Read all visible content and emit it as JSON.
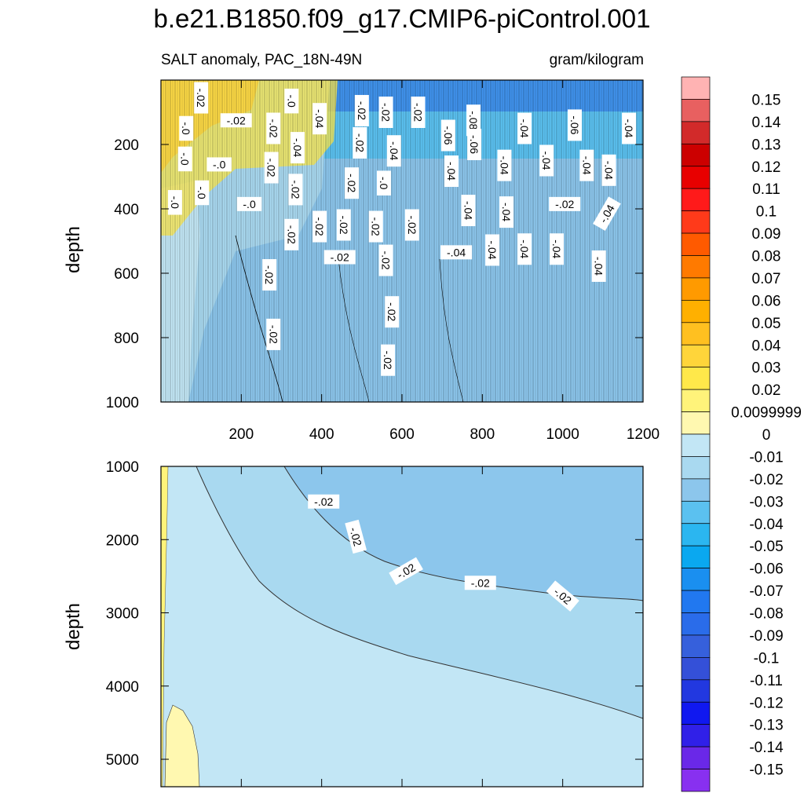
{
  "title": "b.e21.B1850.f09_g17.CMIP6-piControl.001",
  "chart_data": {
    "type": "heatmap",
    "variable": "SALT anomaly, PAC_18N-49N",
    "units": "gram/kilogram",
    "colorbar": {
      "labels": [
        "0.15",
        "0.14",
        "0.13",
        "0.12",
        "0.11",
        "0.1",
        "0.09",
        "0.08",
        "0.07",
        "0.06",
        "0.05",
        "0.04",
        "0.03",
        "0.02",
        "0.0099999",
        "0",
        "-0.01",
        "-0.02",
        "-0.03",
        "-0.04",
        "-0.05",
        "-0.06",
        "-0.07",
        "-0.08",
        "-0.09",
        "-0.1",
        "-0.11",
        "-0.12",
        "-0.13",
        "-0.14",
        "-0.15"
      ],
      "colors": [
        "#FFB3B3",
        "#E86060",
        "#D22A2A",
        "#CC0000",
        "#E80000",
        "#FF1A1A",
        "#FF3A1A",
        "#FF5A00",
        "#FF7A00",
        "#FF9A00",
        "#FFB000",
        "#FFC020",
        "#FFD53A",
        "#FFE84A",
        "#FFF37A",
        "#FFF8B0",
        "#C2E6F5",
        "#A9D9F0",
        "#8CC6EC",
        "#5BC1F0",
        "#2BB6F0",
        "#0AA8F0",
        "#1A8FF0",
        "#2178F0",
        "#2A6CEA",
        "#3660DC",
        "#3450D8",
        "#2238E0",
        "#1018F0",
        "#3020E8",
        "#6A28E8",
        "#8830F0"
      ]
    },
    "panels": [
      {
        "name": "upper",
        "xlim": [
          0,
          1200
        ],
        "ylim": [
          1000,
          0
        ],
        "xticks": [
          200,
          400,
          600,
          800,
          1000,
          1200
        ],
        "yticks": [
          200,
          400,
          600,
          800,
          1000
        ],
        "ylabel": "depth",
        "contour_labels": [
          {
            "text": "-.02",
            "x": 100,
            "y": 55,
            "rot": 90
          },
          {
            "text": "-.02",
            "x": 187,
            "y": 125,
            "rot": 0
          },
          {
            "text": "-.0",
            "x": 63,
            "y": 150,
            "rot": 90
          },
          {
            "text": "-.0",
            "x": 60,
            "y": 245,
            "rot": 90
          },
          {
            "text": "-.0",
            "x": 145,
            "y": 262,
            "rot": 0
          },
          {
            "text": "-.0",
            "x": 35,
            "y": 380,
            "rot": 90
          },
          {
            "text": "-.0",
            "x": 102,
            "y": 350,
            "rot": 90
          },
          {
            "text": "-.0",
            "x": 220,
            "y": 385,
            "rot": 0
          },
          {
            "text": "-.0",
            "x": 325,
            "y": 65,
            "rot": 90
          },
          {
            "text": "-.02",
            "x": 280,
            "y": 150,
            "rot": 90
          },
          {
            "text": "-.04",
            "x": 395,
            "y": 120,
            "rot": 90
          },
          {
            "text": "-.04",
            "x": 340,
            "y": 210,
            "rot": 90
          },
          {
            "text": "-.02",
            "x": 275,
            "y": 272,
            "rot": 90
          },
          {
            "text": "-.02",
            "x": 335,
            "y": 340,
            "rot": 90
          },
          {
            "text": "-.02",
            "x": 500,
            "y": 95,
            "rot": 90
          },
          {
            "text": "-.02",
            "x": 560,
            "y": 100,
            "rot": 90
          },
          {
            "text": "-.02",
            "x": 640,
            "y": 100,
            "rot": 90
          },
          {
            "text": "-.02",
            "x": 495,
            "y": 195,
            "rot": 90
          },
          {
            "text": "-.04",
            "x": 580,
            "y": 220,
            "rot": 90
          },
          {
            "text": "-.02",
            "x": 475,
            "y": 320,
            "rot": 90
          },
          {
            "text": "-.0",
            "x": 555,
            "y": 320,
            "rot": 90
          },
          {
            "text": "-.02",
            "x": 395,
            "y": 455,
            "rot": 90
          },
          {
            "text": "-.02",
            "x": 455,
            "y": 450,
            "rot": 90
          },
          {
            "text": "-.02",
            "x": 535,
            "y": 455,
            "rot": 90
          },
          {
            "text": "-.02",
            "x": 625,
            "y": 450,
            "rot": 90
          },
          {
            "text": "-.02",
            "x": 325,
            "y": 480,
            "rot": 90
          },
          {
            "text": "-.02",
            "x": 445,
            "y": 550,
            "rot": 0
          },
          {
            "text": "-.02",
            "x": 560,
            "y": 560,
            "rot": 90
          },
          {
            "text": "-.02",
            "x": 270,
            "y": 605,
            "rot": 90
          },
          {
            "text": "-.06",
            "x": 715,
            "y": 172,
            "rot": 90
          },
          {
            "text": "-.08",
            "x": 778,
            "y": 125,
            "rot": 90
          },
          {
            "text": "-.06",
            "x": 780,
            "y": 200,
            "rot": 90
          },
          {
            "text": "-.04",
            "x": 723,
            "y": 283,
            "rot": 90
          },
          {
            "text": "-.04",
            "x": 905,
            "y": 150,
            "rot": 90
          },
          {
            "text": "-.06",
            "x": 1030,
            "y": 140,
            "rot": 90
          },
          {
            "text": "-.04",
            "x": 1165,
            "y": 150,
            "rot": 90
          },
          {
            "text": "-.04",
            "x": 855,
            "y": 265,
            "rot": 90
          },
          {
            "text": "-.04",
            "x": 960,
            "y": 250,
            "rot": 90
          },
          {
            "text": "-.04",
            "x": 1060,
            "y": 265,
            "rot": 90
          },
          {
            "text": "-.04",
            "x": 1115,
            "y": 280,
            "rot": 90
          },
          {
            "text": "-.04",
            "x": 765,
            "y": 405,
            "rot": 90
          },
          {
            "text": "-.04",
            "x": 860,
            "y": 410,
            "rot": 90
          },
          {
            "text": "-.02",
            "x": 1005,
            "y": 385,
            "rot": 0
          },
          {
            "text": "-.04",
            "x": 1110,
            "y": 415,
            "rot": -60
          },
          {
            "text": "-.04",
            "x": 735,
            "y": 535,
            "rot": 0
          },
          {
            "text": "-.04",
            "x": 825,
            "y": 528,
            "rot": 90
          },
          {
            "text": "-.04",
            "x": 905,
            "y": 525,
            "rot": 90
          },
          {
            "text": "-.04",
            "x": 985,
            "y": 525,
            "rot": 90
          },
          {
            "text": "-.04",
            "x": 1090,
            "y": 578,
            "rot": 90
          },
          {
            "text": "-.02",
            "x": 280,
            "y": 790,
            "rot": 90
          },
          {
            "text": "-.02",
            "x": 575,
            "y": 720,
            "rot": 90
          },
          {
            "text": "-.02",
            "x": 565,
            "y": 870,
            "rot": 90
          }
        ]
      },
      {
        "name": "lower",
        "xlim": [
          0,
          1200
        ],
        "ylim": [
          5375,
          1000
        ],
        "yticks": [
          1000,
          2000,
          3000,
          4000,
          5000
        ],
        "ylabel": "depth",
        "contour_labels": [
          {
            "text": "-.02",
            "x": 405,
            "y": 1480,
            "rot": 0
          },
          {
            "text": "-.02",
            "x": 485,
            "y": 1960,
            "rot": 75
          },
          {
            "text": "-.02",
            "x": 610,
            "y": 2430,
            "rot": -30
          },
          {
            "text": "-.02",
            "x": 795,
            "y": 2590,
            "rot": 0
          },
          {
            "text": "-.02",
            "x": 1000,
            "y": 2770,
            "rot": 40
          }
        ]
      }
    ]
  }
}
